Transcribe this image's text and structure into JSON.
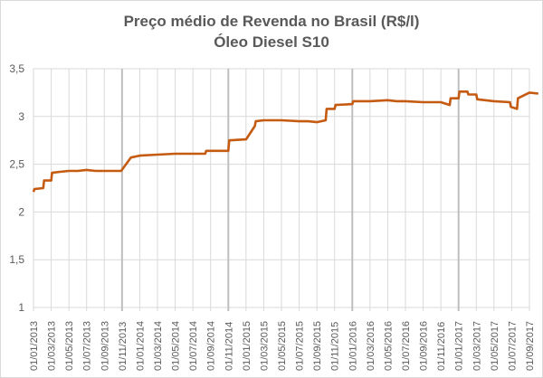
{
  "chart_data": {
    "type": "line",
    "title": "Preço médio de Revenda no Brasil (R$/l)",
    "subtitle": "Óleo Diesel S10",
    "xlabel": "",
    "ylabel": "",
    "ylim": [
      1,
      3.5
    ],
    "yticks": [
      "1",
      "1,5",
      "2",
      "2,5",
      "3",
      "3,5"
    ],
    "grid": true,
    "legend": null,
    "line_color": "#c55a11",
    "x_categories": [
      "01/01/2013",
      "01/03/2013",
      "01/05/2013",
      "01/07/2013",
      "01/09/2013",
      "01/11/2013",
      "01/01/2014",
      "01/03/2014",
      "01/05/2014",
      "01/07/2014",
      "01/09/2014",
      "01/11/2014",
      "01/01/2015",
      "01/03/2015",
      "01/05/2015",
      "01/07/2015",
      "01/09/2015",
      "01/11/2015",
      "01/01/2016",
      "01/03/2016",
      "01/05/2016",
      "01/07/2016",
      "01/09/2016",
      "01/11/2016",
      "01/01/2017",
      "01/03/2017",
      "01/05/2017",
      "01/07/2017",
      "01/09/2017"
    ],
    "highlighted_verticals": [
      "01/11/2013",
      "01/11/2014",
      "01/01/2016",
      "01/01/2017"
    ],
    "series": [
      {
        "name": "Óleo Diesel S10",
        "points": [
          [
            0.0,
            2.21
          ],
          [
            0.05,
            2.24
          ],
          [
            0.55,
            2.25
          ],
          [
            0.6,
            2.33
          ],
          [
            1.0,
            2.33
          ],
          [
            1.05,
            2.41
          ],
          [
            1.5,
            2.42
          ],
          [
            2.0,
            2.43
          ],
          [
            2.5,
            2.43
          ],
          [
            3.0,
            2.44
          ],
          [
            3.5,
            2.43
          ],
          [
            4.0,
            2.43
          ],
          [
            4.5,
            2.43
          ],
          [
            4.95,
            2.43
          ],
          [
            5.5,
            2.57
          ],
          [
            6.0,
            2.59
          ],
          [
            7.0,
            2.6
          ],
          [
            8.0,
            2.61
          ],
          [
            9.0,
            2.61
          ],
          [
            9.7,
            2.61
          ],
          [
            9.75,
            2.64
          ],
          [
            10.5,
            2.64
          ],
          [
            11.0,
            2.64
          ],
          [
            11.05,
            2.75
          ],
          [
            12.0,
            2.76
          ],
          [
            12.5,
            2.9
          ],
          [
            12.55,
            2.95
          ],
          [
            13.0,
            2.96
          ],
          [
            14.0,
            2.96
          ],
          [
            15.0,
            2.95
          ],
          [
            15.5,
            2.95
          ],
          [
            16.0,
            2.94
          ],
          [
            16.5,
            2.96
          ],
          [
            16.55,
            3.08
          ],
          [
            17.0,
            3.08
          ],
          [
            17.05,
            3.12
          ],
          [
            18.0,
            3.13
          ],
          [
            18.05,
            3.16
          ],
          [
            19.0,
            3.16
          ],
          [
            20.0,
            3.17
          ],
          [
            20.5,
            3.16
          ],
          [
            21.0,
            3.16
          ],
          [
            22.0,
            3.15
          ],
          [
            23.0,
            3.15
          ],
          [
            23.5,
            3.12
          ],
          [
            23.55,
            3.19
          ],
          [
            24.0,
            3.19
          ],
          [
            24.05,
            3.26
          ],
          [
            24.5,
            3.26
          ],
          [
            24.55,
            3.23
          ],
          [
            25.0,
            3.23
          ],
          [
            25.05,
            3.18
          ],
          [
            26.0,
            3.16
          ],
          [
            26.9,
            3.15
          ],
          [
            26.95,
            3.1
          ],
          [
            27.3,
            3.08
          ],
          [
            27.35,
            3.19
          ],
          [
            28.0,
            3.25
          ],
          [
            28.5,
            3.24
          ]
        ]
      }
    ]
  }
}
